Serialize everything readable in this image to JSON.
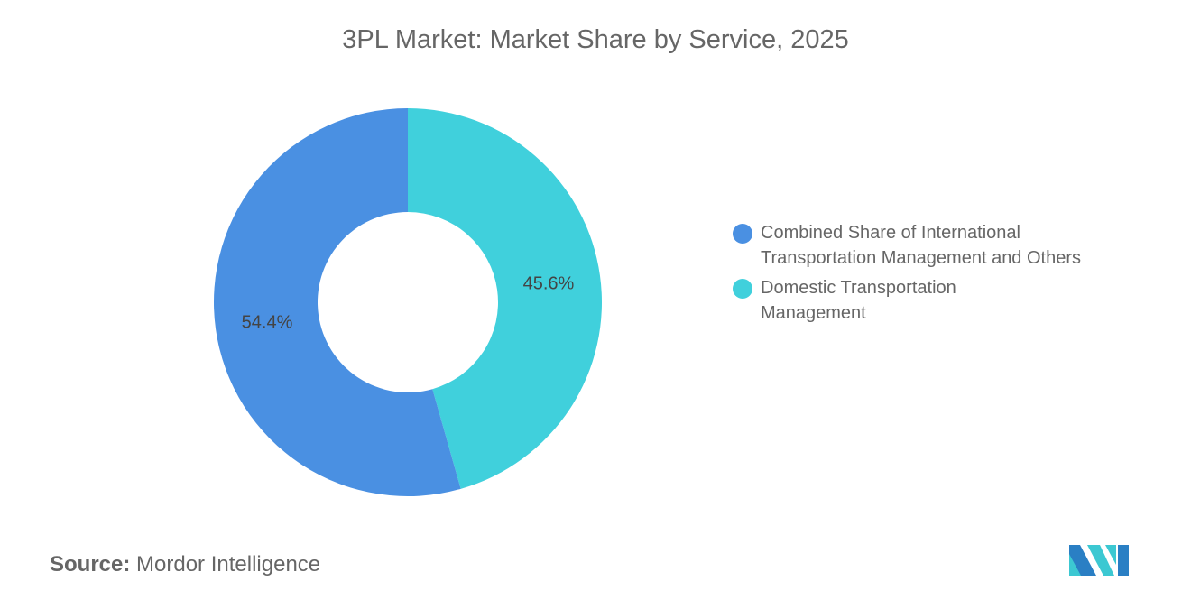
{
  "chart_data": {
    "type": "pie",
    "donut": true,
    "title": "3PL Market: Market Share by Service, 2025",
    "categories": [
      "Domestic Transportation Management",
      "Combined Share of International Transportation Management and Others"
    ],
    "values": [
      45.6,
      54.4
    ],
    "labels": [
      "45.6%",
      "54.4%"
    ],
    "colors": [
      "#40D0DC",
      "#4A90E2"
    ],
    "legend": {
      "placement": "right",
      "entries": [
        {
          "lines": [
            "Combined Share of International",
            "Transportation Management and Others"
          ],
          "color": "#4A90E2"
        },
        {
          "lines": [
            "Domestic Transportation",
            "Management"
          ],
          "color": "#40D0DC"
        }
      ]
    }
  },
  "source": {
    "label": "Source:",
    "value": "Mordor Intelligence"
  },
  "logo": {
    "colors": [
      "#2A7FC4",
      "#3CC8D2"
    ]
  }
}
